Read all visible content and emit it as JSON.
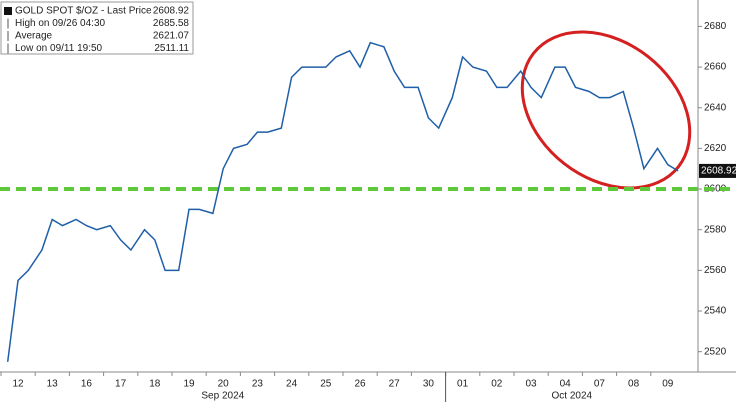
{
  "chart_data": {
    "type": "line",
    "legend": [
      {
        "label": "GOLD SPOT $/OZ - Last Price",
        "value": 2608.92
      },
      {
        "label": "High on 09/26 04:30",
        "value": 2685.58
      },
      {
        "label": "Average",
        "value": 2621.07
      },
      {
        "label": "Low on 09/11 19:50",
        "value": 2511.11
      }
    ],
    "last_price": 2608.92,
    "x_groups": [
      "Sep 2024",
      "Oct 2024"
    ],
    "categories": [
      null,
      "12",
      null,
      null,
      "13",
      null,
      null,
      "16",
      null,
      null,
      "17",
      null,
      null,
      "18",
      null,
      null,
      "19",
      null,
      null,
      "20",
      null,
      null,
      "23",
      null,
      null,
      "24",
      null,
      null,
      "25",
      null,
      null,
      "26",
      null,
      null,
      "27",
      null,
      null,
      "30",
      null,
      null,
      "01",
      null,
      null,
      "02",
      null,
      null,
      "03",
      null,
      null,
      "04",
      null,
      null,
      "07",
      null,
      null,
      "08",
      null,
      null,
      "09",
      null
    ],
    "series": [
      {
        "name": "GOLD SPOT $/OZ",
        "color": "#1f5fa8",
        "values": [
          2515,
          2555,
          2560,
          2570,
          2585,
          2582,
          2585,
          2582,
          2580,
          2582,
          2575,
          2570,
          2580,
          2575,
          2560,
          2560,
          2590,
          2590,
          2588,
          2610,
          2620,
          2622,
          2628,
          2628,
          2630,
          2655,
          2660,
          2660,
          2660,
          2665,
          2668,
          2660,
          2672,
          2670,
          2658,
          2650,
          2650,
          2635,
          2630,
          2645,
          2665,
          2660,
          2658,
          2650,
          2650,
          2658,
          2650,
          2645,
          2660,
          2660,
          2650,
          2648,
          2645,
          2645,
          2648,
          2630,
          2610,
          2620,
          2612,
          2608.92
        ]
      }
    ],
    "hline": {
      "value": 2600,
      "color": "#5cc83a"
    },
    "ylim": [
      2510,
      2693
    ],
    "yticks": [
      2520,
      2540,
      2560,
      2580,
      2600,
      2620,
      2640,
      2660,
      2680
    ]
  }
}
